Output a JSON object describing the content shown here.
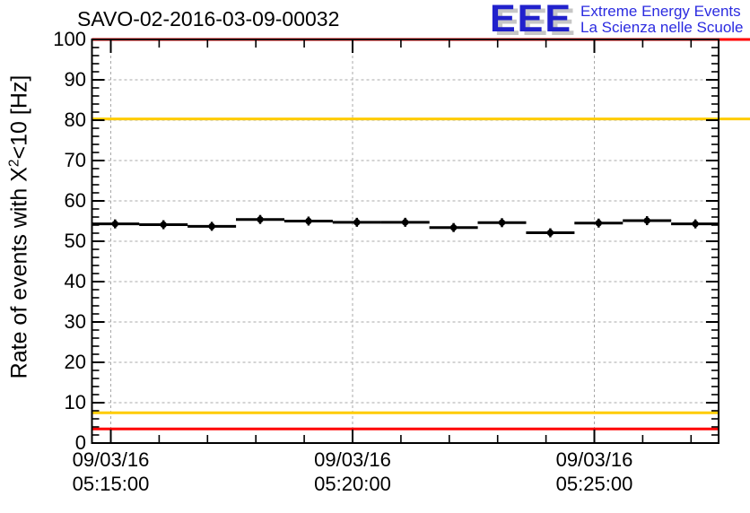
{
  "header": {
    "title": "SAVO-02-2016-03-09-00032"
  },
  "logo": {
    "acronym": "EEE",
    "line1": "Extreme Energy Events",
    "line2": "La Scienza nelle Scuole",
    "text_color": "#2b2be0",
    "acronym_color": "#2121cc",
    "shadow_color": "#c6c6c6"
  },
  "chart_data": {
    "type": "scatter",
    "title": "SAVO-02-2016-03-09-00032",
    "xlabel": "",
    "ylabel": "Rate of events with X^2<10 [Hz]",
    "ylabel_parts": {
      "pre": "Rate of events with X",
      "sup": "2",
      "post": "<10 [Hz]"
    },
    "ylim": [
      0,
      100
    ],
    "y_major_step": 10,
    "y_minor_step": 2,
    "y_tick_labels": [
      "0",
      "10",
      "20",
      "30",
      "40",
      "50",
      "60",
      "70",
      "80",
      "90",
      "100"
    ],
    "x_tick_labels": [
      {
        "date": "09/03/16",
        "time": "05:15:00"
      },
      {
        "date": "09/03/16",
        "time": "05:20:00"
      },
      {
        "date": "09/03/16",
        "time": "05:25:00"
      }
    ],
    "x_major_step_minutes": 5,
    "x_minor_step_minutes": 1,
    "x_axis_range_approx": [
      "09/03/16 05:14:40",
      "09/03/16 05:27:35"
    ],
    "grid": true,
    "legend": "none",
    "bin_width_s": 60,
    "series": [
      {
        "name": "rate",
        "marker": "filled-circle",
        "color": "#000000",
        "x": [
          "05:15",
          "05:16",
          "05:17",
          "05:18",
          "05:19",
          "05:20",
          "05:21",
          "05:22",
          "05:23",
          "05:24",
          "05:25",
          "05:26",
          "05:27"
        ],
        "values": [
          54.3,
          54.1,
          53.7,
          55.4,
          55.0,
          54.7,
          54.7,
          53.4,
          54.6,
          52.1,
          54.5,
          55.1,
          54.3
        ]
      }
    ],
    "thresholds": [
      {
        "name": "red-max-line",
        "value": 100,
        "color": "#ff0000",
        "extends_past_frame": true
      },
      {
        "name": "yellow-max-line",
        "value": 80.3,
        "color": "#ffcc00",
        "extends_past_frame": true
      },
      {
        "name": "yellow-min-line",
        "value": 7.5,
        "color": "#ffcc00",
        "extends_past_frame": false
      },
      {
        "name": "red-min-line",
        "value": 3.5,
        "color": "#ff0000",
        "extends_past_frame": false
      }
    ],
    "colors": {
      "data": "#000000",
      "grid": "#a8a8a8",
      "frame": "#000000",
      "background": "#ffffff"
    }
  }
}
